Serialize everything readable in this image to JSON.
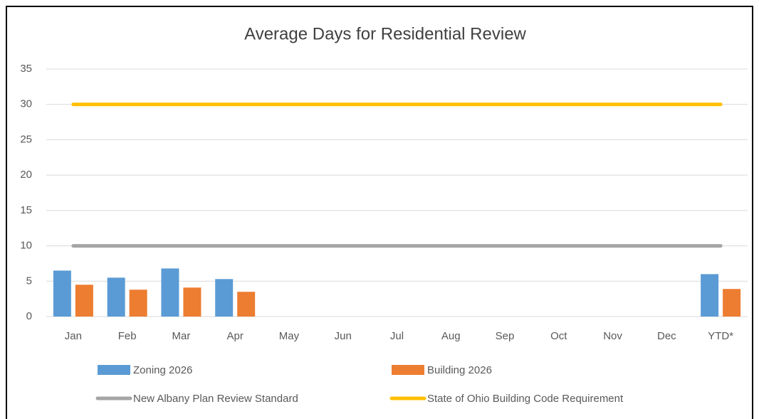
{
  "chart_data": {
    "type": "bar",
    "title": "Average Days for Residential Review",
    "categories": [
      "Jan",
      "Feb",
      "Mar",
      "Apr",
      "May",
      "Jun",
      "Jul",
      "Aug",
      "Sep",
      "Oct",
      "Nov",
      "Dec",
      "YTD*"
    ],
    "series": [
      {
        "name": "Zoning 2026",
        "type": "bar",
        "color": "#5b9bd5",
        "values": [
          6.5,
          5.5,
          6.8,
          5.3,
          null,
          null,
          null,
          null,
          null,
          null,
          null,
          null,
          6.0
        ]
      },
      {
        "name": "Building 2026",
        "type": "bar",
        "color": "#ed7d31",
        "values": [
          4.5,
          3.8,
          4.1,
          3.5,
          null,
          null,
          null,
          null,
          null,
          null,
          null,
          null,
          3.9
        ]
      },
      {
        "name": "New Albany Plan Review Standard",
        "type": "line",
        "color": "#a5a5a5",
        "values": [
          10,
          10,
          10,
          10,
          10,
          10,
          10,
          10,
          10,
          10,
          10,
          10,
          10
        ]
      },
      {
        "name": "State of Ohio Building Code Requirement",
        "type": "line",
        "color": "#ffc000",
        "values": [
          30,
          30,
          30,
          30,
          30,
          30,
          30,
          30,
          30,
          30,
          30,
          30,
          30
        ]
      }
    ],
    "ylim": [
      0,
      35
    ],
    "yticks": [
      0,
      5,
      10,
      15,
      20,
      25,
      30,
      35
    ],
    "grid": true,
    "legend": "bottom"
  }
}
